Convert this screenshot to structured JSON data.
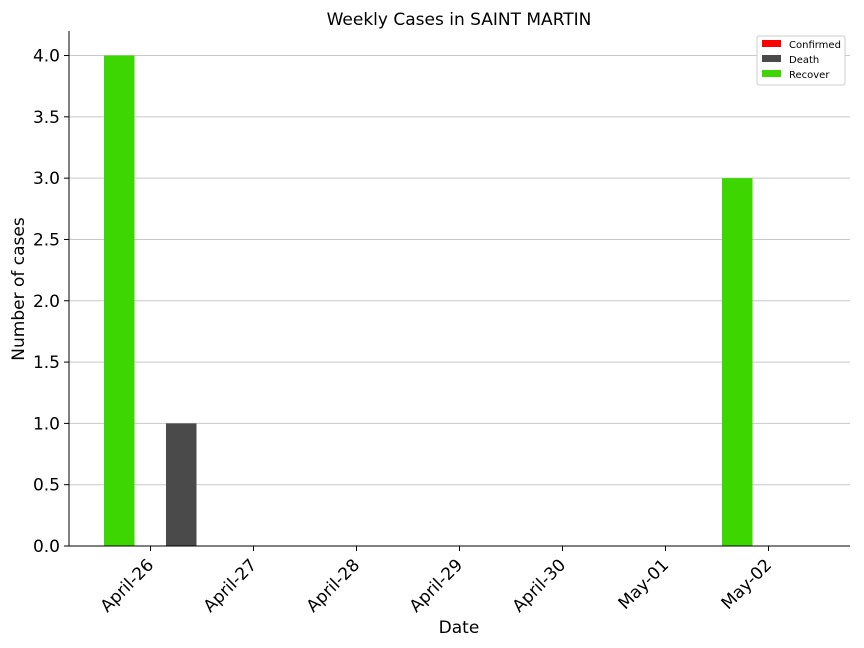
{
  "chart_data": {
    "type": "bar",
    "title": "Weekly Cases in SAINT MARTIN",
    "xlabel": "Date",
    "ylabel": "Number of cases",
    "categories": [
      "April-26",
      "April-27",
      "April-28",
      "April-29",
      "April-30",
      "May-01",
      "May-02"
    ],
    "series": [
      {
        "name": "Confirmed",
        "color": "#ff0000",
        "values": [
          0,
          0,
          0,
          0,
          0,
          0,
          0
        ]
      },
      {
        "name": "Death",
        "color": "#4a4a4a",
        "values": [
          1,
          0,
          0,
          0,
          0,
          0,
          0
        ]
      },
      {
        "name": "Recover",
        "color": "#3dd600",
        "values": [
          4,
          0,
          0,
          0,
          0,
          0,
          3
        ]
      }
    ],
    "ylim": [
      0,
      4.2
    ],
    "yticks": [
      "0.0",
      "0.5",
      "1.0",
      "1.5",
      "2.0",
      "2.5",
      "3.0",
      "3.5",
      "4.0"
    ],
    "grid": "horizontal",
    "legend_position": "top-right"
  }
}
